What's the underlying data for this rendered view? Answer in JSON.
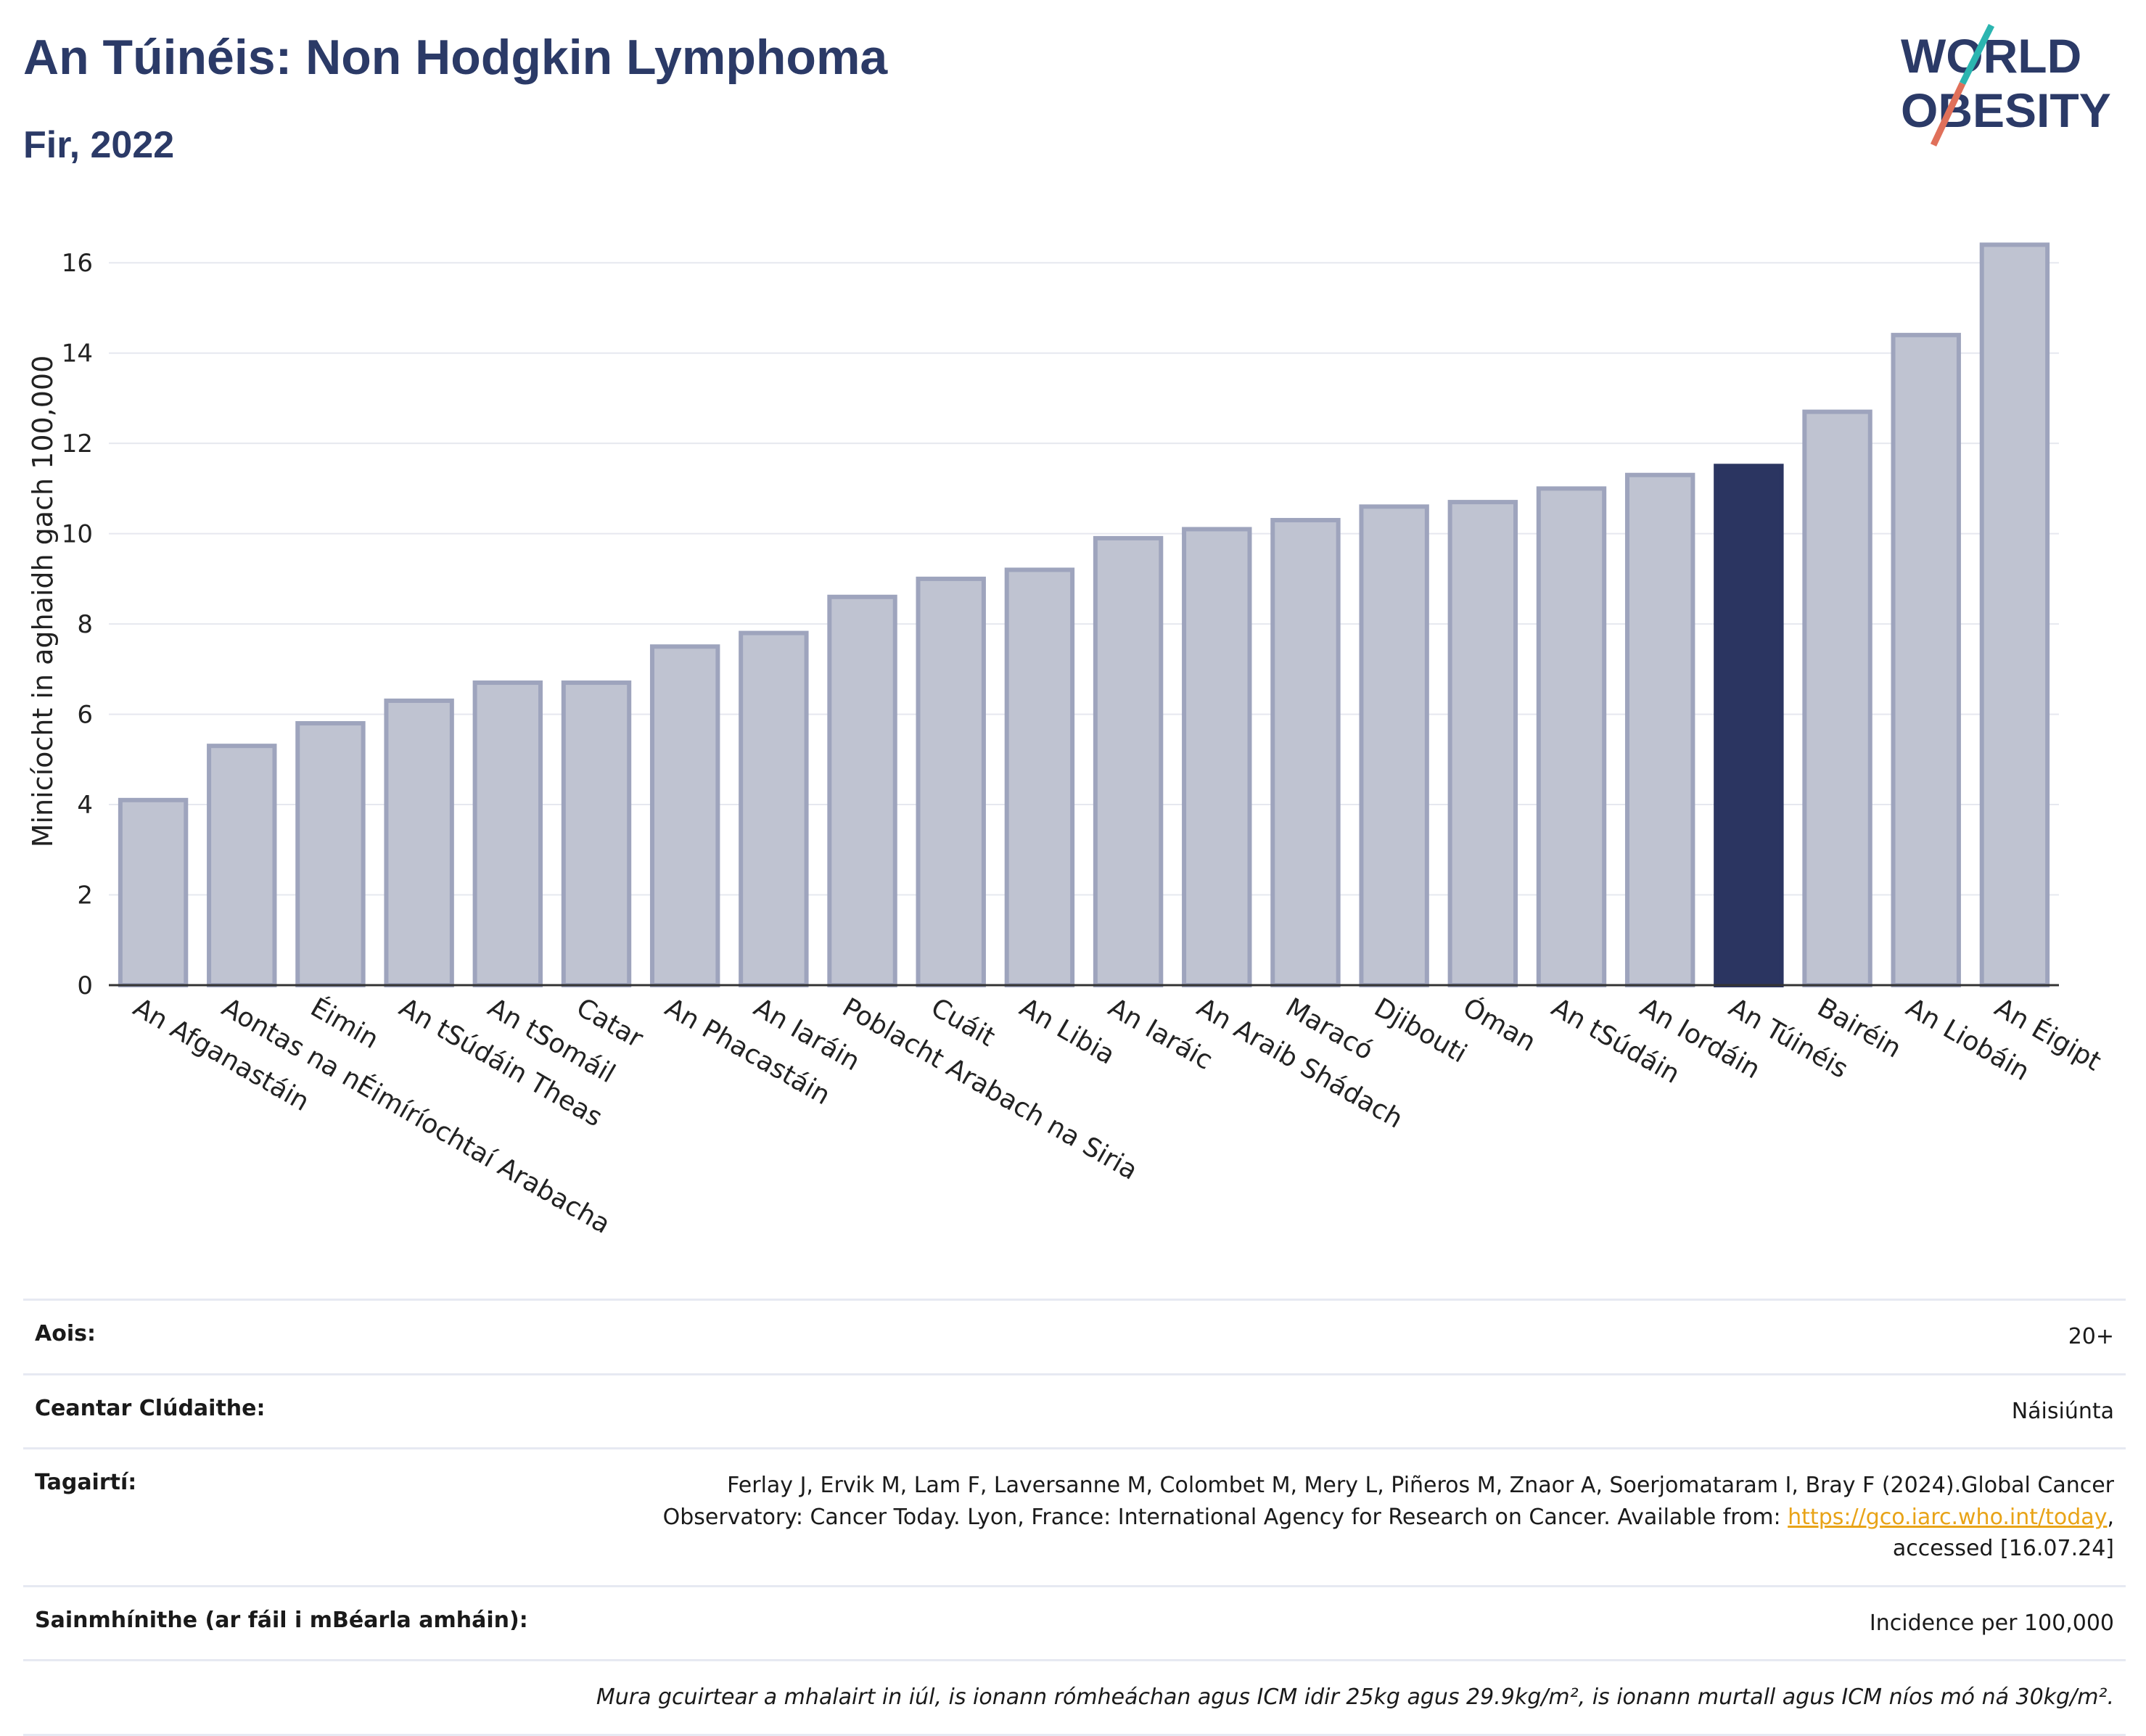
{
  "header": {
    "title": "An Túinéis: Non Hodgkin Lymphoma",
    "subtitle": "Fir, 2022",
    "logo_line1": "WORLD",
    "logo_line2": "OBESITY"
  },
  "chart_data": {
    "type": "bar",
    "title": "",
    "ylabel": "Minicíocht in aghaidh gach 100,000",
    "xlabel": "",
    "ylim": [
      0,
      17
    ],
    "yticks": [
      0,
      2,
      4,
      6,
      8,
      10,
      12,
      14,
      16
    ],
    "grid": true,
    "categories": [
      "An Afganastáin",
      "Aontas na nÉimíríochtaí Arabacha",
      "Éimin",
      "An tSúdáin Theas",
      "An tSomáil",
      "Catar",
      "An Phacastáin",
      "An Iaráin",
      "Poblacht Arabach na Siria",
      "Cuáit",
      "An Libia",
      "An Iaráic",
      "An Araib Shádach",
      "Maracó",
      "Djibouti",
      "Óman",
      "An tSúdáin",
      "An Iordáin",
      "An Túinéis",
      "Bairéin",
      "An Liobáin",
      "An Éigipt"
    ],
    "values": [
      4.1,
      5.3,
      5.8,
      6.3,
      6.7,
      6.7,
      7.5,
      7.8,
      8.6,
      9.0,
      9.2,
      9.9,
      10.1,
      10.3,
      10.6,
      10.7,
      11.0,
      11.3,
      11.5,
      12.7,
      14.4,
      16.4
    ],
    "highlight": "An Túinéis",
    "colors": {
      "bar": "#bfc3d1",
      "bar_edge": "#9ea4bd",
      "highlight": "#2b3561",
      "grid": "#e6e8ef"
    }
  },
  "info": {
    "age_label": "Aois:",
    "age_value": "20+",
    "area_label": "Ceantar Clúdaithe:",
    "area_value": "Náisiúnta",
    "ref_label": "Tagairtí:",
    "ref_text_1": "Ferlay J, Ervik M, Lam F, Laversanne M, Colombet M, Mery L, Piñeros M, Znaor A, Soerjomataram I, Bray F (2024).Global Cancer",
    "ref_text_2": "Observatory: Cancer Today. Lyon, France: International Agency for Research on Cancer. Available from:",
    "ref_link": "https://gco.iarc.who.int/today",
    "ref_text_3": "accessed [16.07.24]",
    "def_label": "Sainmhínithe (ar fáil i mBéarla amháin):",
    "def_value": "Incidence per 100,000",
    "note": "Mura gcuirtear a mhalairt in iúl, is ionann rómheáchan agus ICM idir 25kg agus 29.9kg/m², is ionann murtall agus ICM níos mó ná 30kg/m²."
  }
}
